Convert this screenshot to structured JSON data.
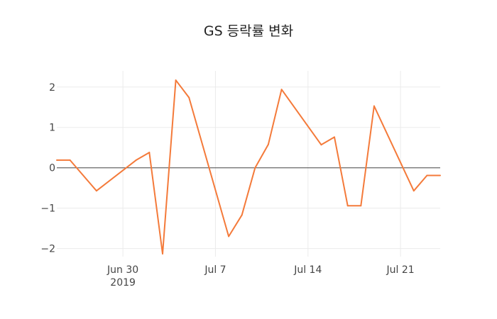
{
  "chart_data": {
    "type": "line",
    "title": "GS 등락률 변화",
    "xlabel": "",
    "ylabel": "",
    "x_tick_labels": [
      {
        "date": "2019-06-30",
        "label": "Jun 30",
        "sublabel": "2019"
      },
      {
        "date": "2019-07-07",
        "label": "Jul 7",
        "sublabel": ""
      },
      {
        "date": "2019-07-14",
        "label": "Jul 14",
        "sublabel": ""
      },
      {
        "date": "2019-07-21",
        "label": "Jul 21",
        "sublabel": ""
      }
    ],
    "y_tick_labels": [
      {
        "value": 2,
        "label": "2"
      },
      {
        "value": 1,
        "label": "1"
      },
      {
        "value": 0,
        "label": "0"
      },
      {
        "value": -1,
        "label": "−1"
      },
      {
        "value": -2,
        "label": "−2"
      }
    ],
    "xlim": [
      "2019-06-25",
      "2019-07-24"
    ],
    "ylim": [
      -2.2,
      2.4
    ],
    "grid": true,
    "series": [
      {
        "color": "#f47a3a",
        "points": [
          {
            "x": "2019-06-25",
            "y": 0.19
          },
          {
            "x": "2019-06-26",
            "y": 0.19
          },
          {
            "x": "2019-06-28",
            "y": -0.57
          },
          {
            "x": "2019-07-01",
            "y": 0.19
          },
          {
            "x": "2019-07-02",
            "y": 0.38
          },
          {
            "x": "2019-07-03",
            "y": -2.13
          },
          {
            "x": "2019-07-04",
            "y": 2.17
          },
          {
            "x": "2019-07-05",
            "y": 1.74
          },
          {
            "x": "2019-07-08",
            "y": -1.7
          },
          {
            "x": "2019-07-09",
            "y": -1.17
          },
          {
            "x": "2019-07-10",
            "y": 0.0
          },
          {
            "x": "2019-07-11",
            "y": 0.58
          },
          {
            "x": "2019-07-12",
            "y": 1.94
          },
          {
            "x": "2019-07-15",
            "y": 0.57
          },
          {
            "x": "2019-07-16",
            "y": 0.76
          },
          {
            "x": "2019-07-17",
            "y": -0.94
          },
          {
            "x": "2019-07-18",
            "y": -0.94
          },
          {
            "x": "2019-07-19",
            "y": 1.53
          },
          {
            "x": "2019-07-22",
            "y": -0.57
          },
          {
            "x": "2019-07-23",
            "y": -0.19
          },
          {
            "x": "2019-07-24",
            "y": -0.19
          }
        ]
      }
    ]
  }
}
